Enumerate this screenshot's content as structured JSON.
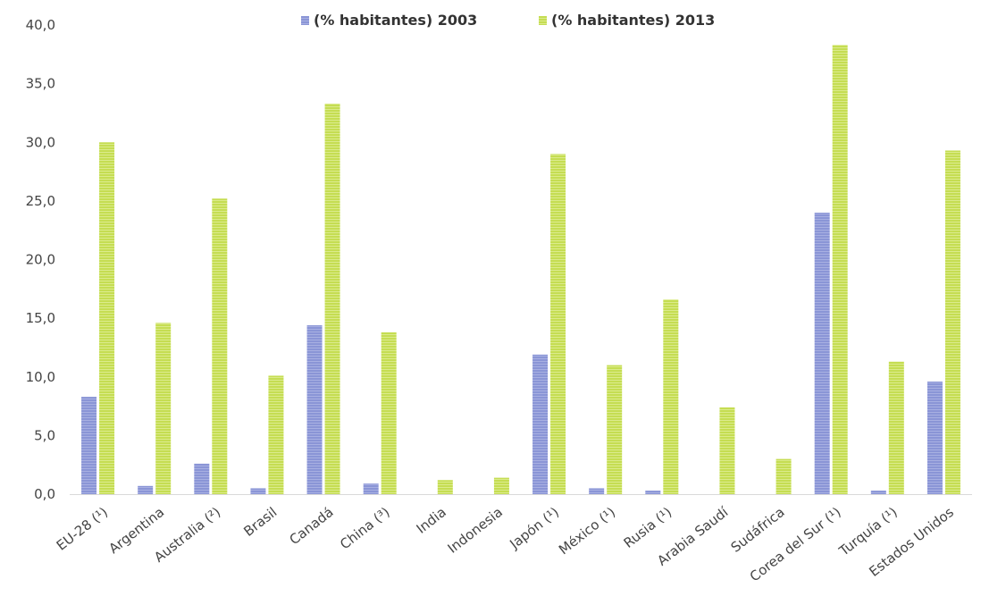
{
  "chart_data": {
    "type": "bar",
    "categories": [
      "EU-28 (¹)",
      "Argentina",
      "Australia (²)",
      "Brasil",
      "Canadá",
      "China (³)",
      "India",
      "Indonesia",
      "Japón (¹)",
      "México (¹)",
      "Rusia (¹)",
      "Arabia Saudí",
      "Sudáfrica",
      "Corea del Sur (¹)",
      "Turquía (¹)",
      "Estados Unidos"
    ],
    "series": [
      {
        "name": "(% habitantes) 2003",
        "color": "#8a95d6",
        "values": [
          8.3,
          0.7,
          2.6,
          0.5,
          14.4,
          0.9,
          0.0,
          0.0,
          11.9,
          0.5,
          0.3,
          0.0,
          0.0,
          24.0,
          0.3,
          9.6
        ]
      },
      {
        "name": "(% habitantes) 2013",
        "color": "#c5dd52",
        "values": [
          30.0,
          14.6,
          25.2,
          10.1,
          33.3,
          13.8,
          1.2,
          1.4,
          29.0,
          11.0,
          16.6,
          7.4,
          3.0,
          38.3,
          11.3,
          29.3
        ]
      }
    ],
    "y_ticks": [
      "0,0",
      "5,0",
      "10,0",
      "15,0",
      "20,0",
      "25,0",
      "30,0",
      "35,0",
      "40,0"
    ],
    "ylim": [
      0,
      40
    ],
    "grid": false,
    "legend_position": "top-center"
  }
}
